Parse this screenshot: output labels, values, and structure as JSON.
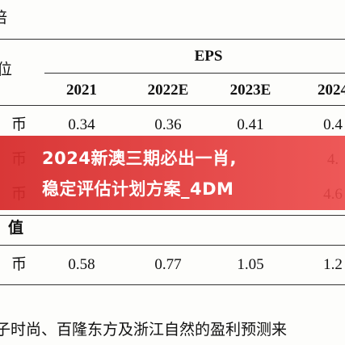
{
  "header": {
    "top_label": "倍",
    "unit_label": "位"
  },
  "table": {
    "group_header": "EPS",
    "columns": [
      "2021",
      "2022E",
      "2023E",
      "2024"
    ],
    "rows": [
      {
        "label": "币",
        "cells": [
          "0.34",
          "0.36",
          "0.41",
          "0.4"
        ]
      },
      {
        "label": "币",
        "cells": [
          "",
          "",
          "",
          "4."
        ]
      },
      {
        "label": "币",
        "cells": [
          "",
          "",
          "",
          "4.6"
        ]
      },
      {
        "label": "值",
        "cells": []
      },
      {
        "label": "币",
        "cells": [
          "0.58",
          "0.77",
          "1.05",
          "1.2"
        ]
      }
    ]
  },
  "banner": {
    "lines": [
      "2024新澳三期必出一肖,",
      "稳定评估计划方案_4DM"
    ]
  },
  "footnote": "子时尚、百隆东方及浙江自然的盈利预测来"
}
